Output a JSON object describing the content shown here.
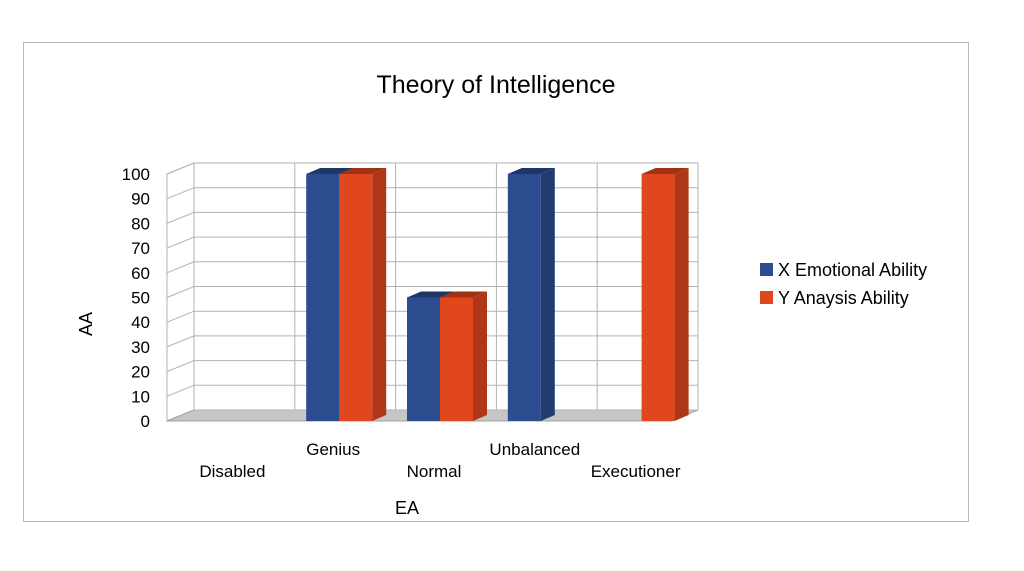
{
  "chart_data": {
    "type": "bar",
    "title": "Theory of Intelligence",
    "xlabel": "EA",
    "ylabel": "AA",
    "categories": [
      "Disabled",
      "Genius",
      "Normal",
      "Unbalanced",
      "Executioner"
    ],
    "series": [
      {
        "name": "X Emotional Ability",
        "values": [
          0,
          100,
          50,
          100,
          0
        ],
        "color": "#2b4d8f"
      },
      {
        "name": "Y Anaysis Ability",
        "values": [
          0,
          100,
          50,
          0,
          100
        ],
        "color": "#e0471d"
      }
    ],
    "ylim": [
      0,
      100
    ],
    "yticks": [
      0,
      10,
      20,
      30,
      40,
      50,
      60,
      70,
      80,
      90,
      100
    ],
    "grid": true,
    "legend": "right",
    "style": "3d"
  }
}
